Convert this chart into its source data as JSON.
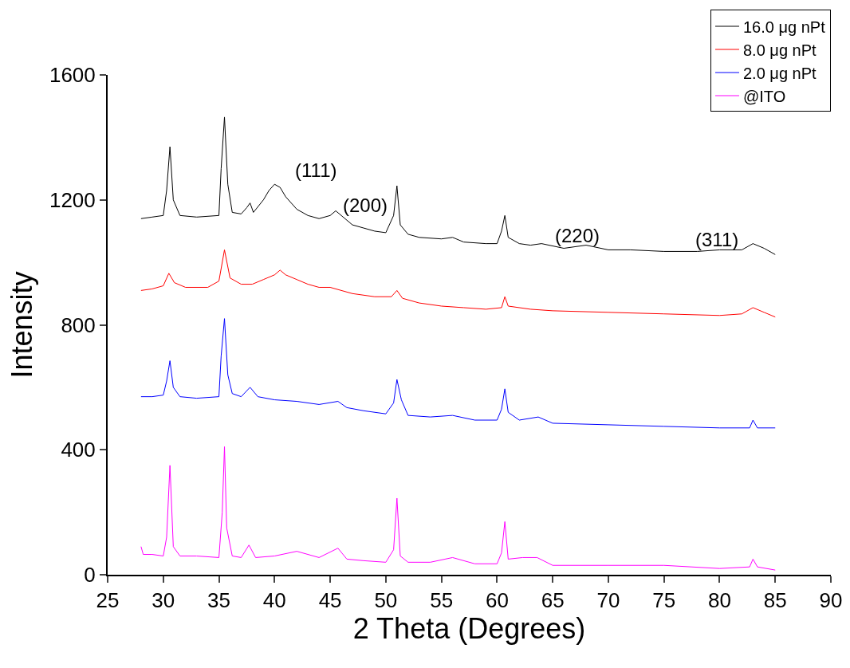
{
  "chart_data": {
    "type": "line",
    "xlabel": "2 Theta (Degrees)",
    "ylabel": "Intensity",
    "xlim": [
      25,
      90
    ],
    "xticks": [
      25,
      30,
      35,
      40,
      45,
      50,
      55,
      60,
      65,
      70,
      75,
      80,
      85,
      90
    ],
    "ylim": [
      0,
      1600
    ],
    "yticks": [
      0,
      400,
      800,
      1200,
      1600
    ],
    "grid": false,
    "legend": "top right",
    "marker": "none",
    "line_style": "solid",
    "annotations": [
      "(111)",
      "(200)",
      "(220)",
      "(311)"
    ],
    "series": [
      {
        "name": "16.0 μg nPt",
        "color": "#000000",
        "x": [
          28,
          29,
          30,
          30.3,
          30.6,
          30.9,
          31.5,
          33,
          35,
          35.2,
          35.5,
          35.8,
          36.2,
          37,
          37.5,
          37.8,
          38.1,
          39,
          39.5,
          40,
          40.5,
          41,
          42,
          43,
          44,
          45,
          45.5,
          46,
          47,
          48,
          49,
          50,
          50.7,
          51,
          51.3,
          52,
          53,
          55,
          56,
          57,
          59,
          60,
          60.4,
          60.7,
          61,
          62,
          63,
          64,
          66,
          68,
          70,
          72,
          75,
          78,
          80,
          82,
          83,
          84,
          85
        ],
        "values": [
          1140,
          1145,
          1150,
          1230,
          1370,
          1200,
          1150,
          1145,
          1150,
          1300,
          1465,
          1250,
          1160,
          1155,
          1175,
          1190,
          1160,
          1200,
          1230,
          1250,
          1240,
          1210,
          1170,
          1150,
          1140,
          1150,
          1165,
          1150,
          1120,
          1110,
          1100,
          1095,
          1150,
          1245,
          1120,
          1090,
          1080,
          1075,
          1080,
          1065,
          1060,
          1060,
          1100,
          1150,
          1080,
          1060,
          1055,
          1060,
          1045,
          1055,
          1040,
          1040,
          1035,
          1035,
          1040,
          1040,
          1060,
          1045,
          1025
        ]
      },
      {
        "name": "8.0 μg nPt",
        "color": "#ff0000",
        "x": [
          28,
          29,
          30,
          30.5,
          31,
          32,
          34,
          35,
          35.5,
          36,
          37,
          38,
          39,
          40,
          40.5,
          41,
          42,
          43,
          44,
          45,
          47,
          49,
          50.5,
          51,
          51.5,
          53,
          55,
          57,
          59,
          60.4,
          60.7,
          61,
          63,
          65,
          70,
          75,
          80,
          82,
          83,
          84,
          85
        ],
        "values": [
          910,
          915,
          925,
          965,
          935,
          920,
          920,
          940,
          1040,
          950,
          930,
          930,
          945,
          960,
          975,
          960,
          945,
          930,
          920,
          920,
          900,
          890,
          890,
          910,
          885,
          870,
          860,
          855,
          850,
          855,
          890,
          860,
          850,
          845,
          840,
          835,
          830,
          835,
          855,
          840,
          825
        ]
      },
      {
        "name": "2.0 μg nPt",
        "color": "#0000ff",
        "x": [
          28,
          29,
          30,
          30.3,
          30.6,
          30.9,
          31.5,
          33,
          35,
          35.2,
          35.5,
          35.8,
          36.2,
          37,
          37.8,
          38.5,
          40,
          42,
          44,
          45.7,
          46.5,
          48,
          50,
          50.7,
          51,
          51.4,
          52,
          54,
          56,
          58,
          60,
          60.4,
          60.7,
          61,
          62,
          63.7,
          65,
          70,
          75,
          80,
          82.7,
          83,
          83.4,
          85
        ],
        "values": [
          570,
          570,
          575,
          620,
          685,
          600,
          570,
          565,
          570,
          700,
          820,
          640,
          580,
          570,
          600,
          570,
          560,
          555,
          545,
          555,
          535,
          525,
          515,
          550,
          625,
          560,
          510,
          505,
          510,
          495,
          495,
          530,
          595,
          520,
          495,
          505,
          485,
          480,
          475,
          470,
          470,
          495,
          470,
          470
        ]
      },
      {
        "name": "@ITO",
        "color": "#ff00ff",
        "x": [
          28,
          28.2,
          29,
          30,
          30.3,
          30.6,
          30.9,
          31.5,
          33,
          35,
          35.3,
          35.5,
          35.7,
          36.2,
          37,
          37.7,
          38.3,
          40,
          42,
          44,
          45.7,
          46.5,
          48,
          50,
          50.7,
          51,
          51.3,
          52,
          54,
          56,
          58,
          60,
          60.4,
          60.7,
          61,
          62.3,
          63.6,
          65,
          70,
          75,
          80,
          82.7,
          83,
          83.4,
          85
        ],
        "values": [
          90,
          65,
          65,
          60,
          120,
          350,
          90,
          60,
          60,
          55,
          200,
          410,
          150,
          60,
          55,
          95,
          55,
          60,
          75,
          55,
          85,
          50,
          45,
          40,
          80,
          245,
          60,
          40,
          40,
          55,
          35,
          35,
          70,
          170,
          50,
          55,
          55,
          30,
          30,
          30,
          20,
          25,
          50,
          25,
          15
        ]
      }
    ]
  }
}
